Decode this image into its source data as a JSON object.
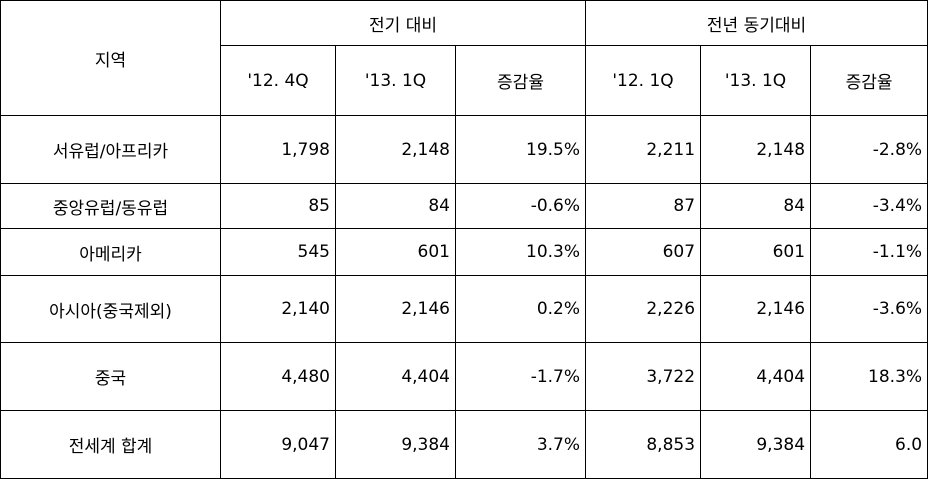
{
  "table": {
    "region_header": "지역",
    "groups": [
      "전기 대비",
      "전년 동기대비"
    ],
    "subheaders": [
      "'12. 4Q",
      "'13. 1Q",
      "증감율",
      "'12. 1Q",
      "'13. 1Q",
      "증감율"
    ],
    "rows": [
      [
        "서유럽/아프리카",
        "1,798",
        "2,148",
        "19.5%",
        "2,211",
        "2,148",
        "-2.8%"
      ],
      [
        "중앙유럽/동유럽",
        "85",
        "84",
        "-0.6%",
        "87",
        "84",
        "-3.4%"
      ],
      [
        "아메리카",
        "545",
        "601",
        "10.3%",
        "607",
        "601",
        "-1.1%"
      ],
      [
        "아시아(중국제외)",
        "2,140",
        "2,146",
        "0.2%",
        "2,226",
        "2,146",
        "-3.6%"
      ],
      [
        "중국",
        "4,480",
        "4,404",
        "-1.7%",
        "3,722",
        "4,404",
        "18.3%"
      ],
      [
        "전세계 합계",
        "9,047",
        "9,384",
        "3.7%",
        "8,853",
        "9,384",
        "6.0"
      ]
    ]
  }
}
